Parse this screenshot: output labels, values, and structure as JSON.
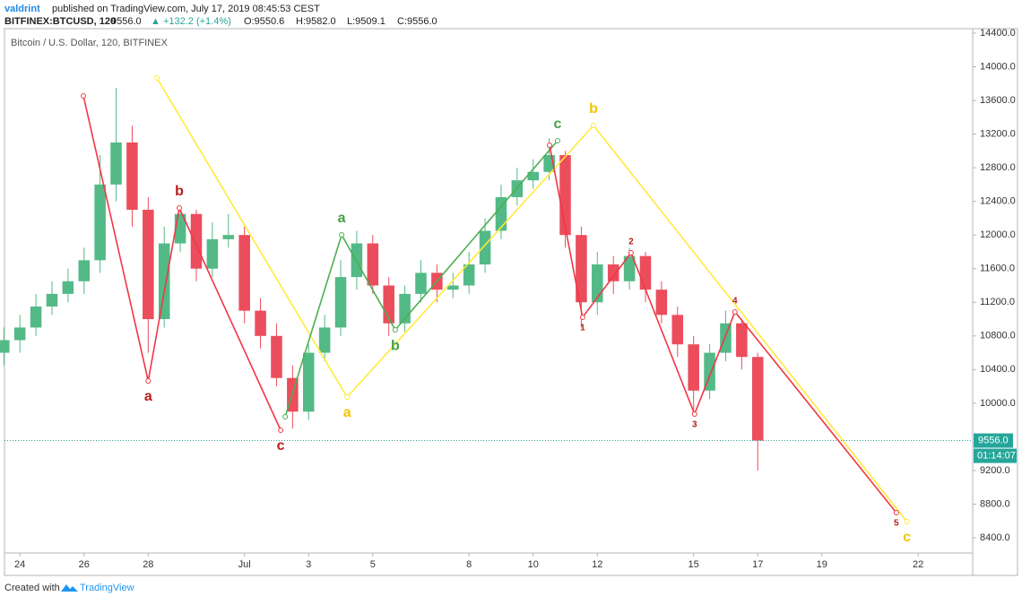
{
  "header": {
    "author": "valdrint",
    "published": "published on TradingView.com, July 17, 2019 08:45:53 CEST",
    "symbol": "BITFINEX:BTCUSD, 120",
    "last": "9556.0",
    "change": "▲ +132.2 (+1.4%)",
    "open": "O:9550.6",
    "high": "H:9582.0",
    "low": "L:9509.1",
    "close": "C:9556.0"
  },
  "footer": {
    "text": "Created with",
    "brand": "TradingView"
  },
  "chart_data": {
    "type": "candlestick",
    "title": "Bitcoin / U.S. Dollar, 120, BITFINEX",
    "up_color": "#53b987",
    "down_color": "#eb4d5c",
    "xlim": [
      23.52,
      53.7
    ],
    "ylim": [
      8219,
      14453
    ],
    "xticks": [
      24,
      26,
      28,
      {
        "value": 31,
        "label": "Jul"
      },
      {
        "value": 33,
        "label": "3"
      },
      {
        "value": 35,
        "label": "5"
      },
      {
        "value": 38,
        "label": "8"
      },
      {
        "value": 40,
        "label": "10"
      },
      {
        "value": 42,
        "label": "12"
      },
      {
        "value": 45,
        "label": "15"
      },
      {
        "value": 47,
        "label": "17"
      },
      {
        "value": 49,
        "label": "19"
      },
      {
        "value": 52,
        "label": "22"
      }
    ],
    "yticks": [
      {
        "value": 8400,
        "label": "8400.0"
      },
      {
        "value": 8800,
        "label": "8800.0"
      },
      {
        "value": 9200,
        "label": "9200.0"
      },
      {
        "value": 10000,
        "label": "10000.0"
      },
      {
        "value": 10400,
        "label": "10400.0"
      },
      {
        "value": 10800,
        "label": "10800.0"
      },
      {
        "value": 11200,
        "label": "11200.0"
      },
      {
        "value": 11600,
        "label": "11600.0"
      },
      {
        "value": 12000,
        "label": "12000.0"
      },
      {
        "value": 12400,
        "label": "12400.0"
      },
      {
        "value": 12800,
        "label": "12800.0"
      },
      {
        "value": 13200,
        "label": "13200.0"
      },
      {
        "value": 13600,
        "label": "13600.0"
      },
      {
        "value": 14000,
        "label": "14000.0"
      },
      {
        "value": 14400,
        "label": "14400.0"
      }
    ],
    "last_price": {
      "value": 9556,
      "label": "9556.0"
    },
    "countdown": "01:14:07",
    "last_color": "#26a69a",
    "candles": {
      "x": [
        23.5,
        24,
        24.5,
        25,
        25.5,
        26,
        26.5,
        27,
        27.5,
        28,
        28.5,
        29,
        29.5,
        30,
        30.5,
        31,
        31.5,
        32,
        32.5,
        33,
        33.5,
        34,
        34.5,
        35,
        35.5,
        36,
        36.5,
        37,
        37.5,
        38,
        38.5,
        39,
        39.5,
        40,
        40.5,
        41,
        41.5,
        42,
        42.5,
        43,
        43.5,
        44,
        44.5,
        45,
        45.5,
        46,
        46.5,
        47
      ],
      "open": [
        10600,
        10750,
        10900,
        11150,
        11300,
        11450,
        11700,
        12600,
        13100,
        12300,
        11000,
        11900,
        12250,
        11600,
        11950,
        12000,
        11100,
        10800,
        10300,
        9900,
        10600,
        10900,
        11500,
        11900,
        11400,
        10950,
        11300,
        11550,
        11350,
        11400,
        11650,
        12050,
        12450,
        12650,
        12750,
        12950,
        12000,
        11200,
        11650,
        11450,
        11750,
        11350,
        11050,
        10700,
        10150,
        10600,
        10950,
        10550
      ],
      "high": [
        10900,
        11050,
        11300,
        11450,
        11600,
        11850,
        12950,
        13750,
        13300,
        12450,
        12100,
        12350,
        12300,
        12150,
        12250,
        12100,
        11250,
        10950,
        10450,
        10700,
        11050,
        11700,
        12050,
        12000,
        11500,
        11400,
        11700,
        11650,
        11550,
        11800,
        12200,
        12600,
        12800,
        12900,
        13150,
        13000,
        12100,
        11800,
        11750,
        11850,
        11800,
        11450,
        11150,
        10800,
        10700,
        11100,
        11000,
        10600
      ],
      "low": [
        10450,
        10600,
        10800,
        11050,
        11200,
        11300,
        11550,
        12400,
        12100,
        10600,
        10900,
        11800,
        11450,
        11500,
        11850,
        10950,
        10650,
        10200,
        9700,
        9800,
        10500,
        10800,
        11350,
        11300,
        10800,
        10850,
        11200,
        11200,
        11250,
        11300,
        11550,
        11950,
        12350,
        12550,
        12650,
        11850,
        10900,
        11050,
        11300,
        11350,
        11200,
        10950,
        10550,
        9900,
        10050,
        10500,
        10400,
        9200
      ],
      "close": [
        10750,
        10900,
        11150,
        11300,
        11450,
        11700,
        12600,
        13100,
        12300,
        11000,
        11900,
        12250,
        11600,
        11950,
        12000,
        11100,
        10800,
        10300,
        9900,
        10600,
        10900,
        11500,
        11900,
        11400,
        10950,
        11300,
        11550,
        11350,
        11400,
        11650,
        12050,
        12450,
        12650,
        12750,
        12950,
        12000,
        11200,
        11650,
        11450,
        11750,
        11350,
        11050,
        10700,
        10150,
        10600,
        10950,
        10550,
        9556
      ]
    },
    "waves": [
      {
        "color": "#f23645",
        "x": [
          25.98,
          28.0,
          28.97,
          32.13
        ],
        "y": [
          13654,
          10265,
          12322,
          9679
        ],
        "labels": [
          null,
          "a",
          "b",
          "c"
        ],
        "label_color": "#b71c1c"
      },
      {
        "color": "#ffeb3b",
        "x": [
          28.27,
          34.2,
          41.88,
          51.65
        ],
        "y": [
          13867,
          10073,
          13302,
          8592
        ],
        "labels": [
          null,
          "a",
          "b",
          "c"
        ],
        "label_color": "#f5c400"
      },
      {
        "color": "#4caf50",
        "x": [
          32.27,
          34.03,
          35.7,
          40.76
        ],
        "y": [
          9839,
          12002,
          10872,
          13121
        ],
        "labels": [
          null,
          "a",
          "b",
          "c"
        ],
        "label_color": "#43a047"
      },
      {
        "color": "#f23645",
        "x": [
          40.51,
          41.54,
          43.05,
          45.03,
          46.29,
          51.32
        ],
        "y": [
          13068,
          11022,
          11789,
          9871,
          11086,
          8698
        ],
        "labels": [
          null,
          "1",
          "2",
          "3",
          "4",
          "5"
        ],
        "label_color": "#b71c1c"
      }
    ]
  }
}
